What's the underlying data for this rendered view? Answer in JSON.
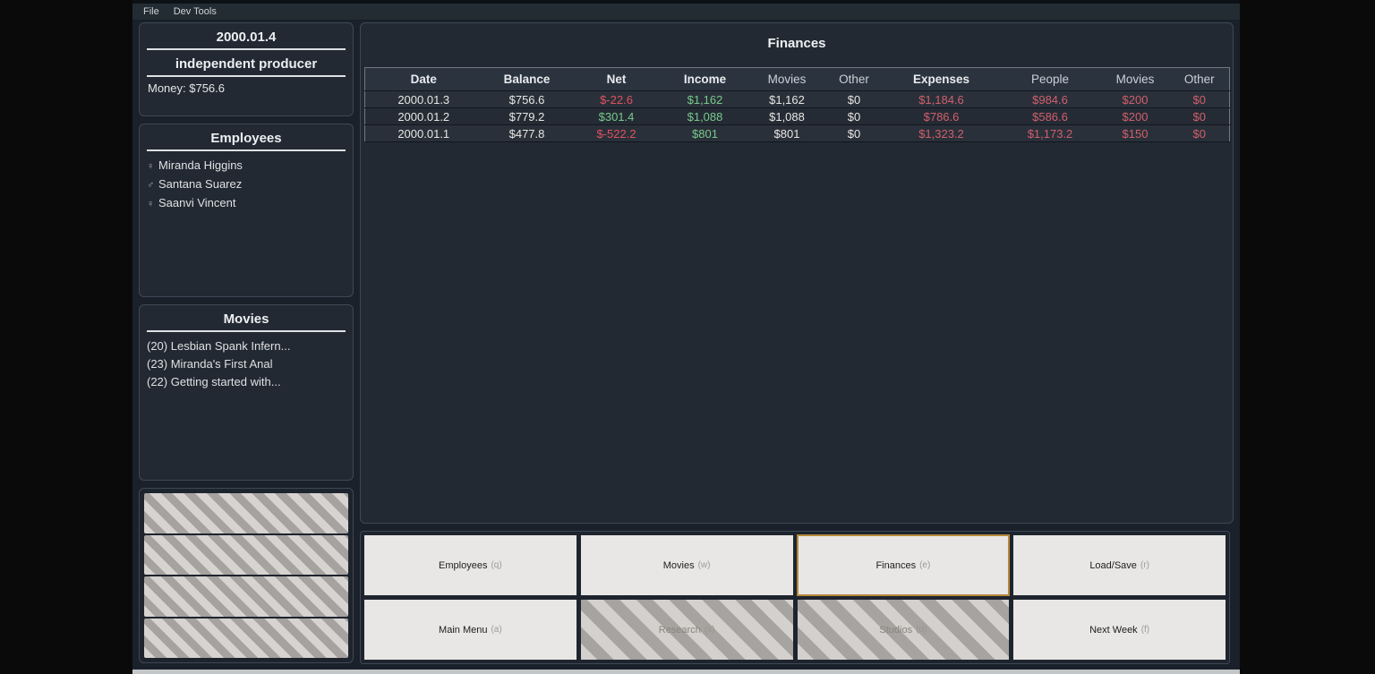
{
  "menu": {
    "items": [
      "File",
      "Dev Tools"
    ]
  },
  "status_panel": {
    "date": "2000.01.4",
    "producer_type": "independent producer",
    "money": "Money: $756.6"
  },
  "employees_panel": {
    "title": "Employees",
    "items": [
      {
        "gender": "female",
        "icon": "♀",
        "name": "Miranda Higgins"
      },
      {
        "gender": "male",
        "icon": "♂",
        "name": "Santana Suarez"
      },
      {
        "gender": "female",
        "icon": "♀",
        "name": "Saanvi Vincent"
      }
    ]
  },
  "movies_panel": {
    "title": "Movies",
    "items": [
      "(20) Lesbian Spank Infern...",
      "(23) Miranda's First Anal",
      "(22) Getting started with..."
    ]
  },
  "locked_panel": {
    "slots": 4
  },
  "finances_panel": {
    "title": "Finances",
    "columns": [
      {
        "label": "Date",
        "bold": true
      },
      {
        "label": "Balance",
        "bold": true
      },
      {
        "label": "Net",
        "bold": true
      },
      {
        "label": "Income",
        "bold": true
      },
      {
        "label": "Movies",
        "bold": false
      },
      {
        "label": "Other",
        "bold": false
      },
      {
        "label": "Expenses",
        "bold": true
      },
      {
        "label": "People",
        "bold": false
      },
      {
        "label": "Movies",
        "bold": false
      },
      {
        "label": "Other",
        "bold": false
      }
    ],
    "rows": [
      [
        {
          "t": "2000.01.3",
          "c": "plain"
        },
        {
          "t": "$756.6",
          "c": "plain"
        },
        {
          "t": "$-22.6",
          "c": "neg"
        },
        {
          "t": "$1,162",
          "c": "pos"
        },
        {
          "t": "$1,162",
          "c": "plain"
        },
        {
          "t": "$0",
          "c": "plain"
        },
        {
          "t": "$1,184.6",
          "c": "exp"
        },
        {
          "t": "$984.6",
          "c": "exp"
        },
        {
          "t": "$200",
          "c": "exp"
        },
        {
          "t": "$0",
          "c": "exp"
        }
      ],
      [
        {
          "t": "2000.01.2",
          "c": "plain"
        },
        {
          "t": "$779.2",
          "c": "plain"
        },
        {
          "t": "$301.4",
          "c": "pos"
        },
        {
          "t": "$1,088",
          "c": "pos"
        },
        {
          "t": "$1,088",
          "c": "plain"
        },
        {
          "t": "$0",
          "c": "plain"
        },
        {
          "t": "$786.6",
          "c": "exp"
        },
        {
          "t": "$586.6",
          "c": "exp"
        },
        {
          "t": "$200",
          "c": "exp"
        },
        {
          "t": "$0",
          "c": "exp"
        }
      ],
      [
        {
          "t": "2000.01.1",
          "c": "plain"
        },
        {
          "t": "$477.8",
          "c": "plain"
        },
        {
          "t": "$-522.2",
          "c": "neg"
        },
        {
          "t": "$801",
          "c": "pos"
        },
        {
          "t": "$801",
          "c": "plain"
        },
        {
          "t": "$0",
          "c": "plain"
        },
        {
          "t": "$1,323.2",
          "c": "exp"
        },
        {
          "t": "$1,173.2",
          "c": "exp"
        },
        {
          "t": "$150",
          "c": "exp"
        },
        {
          "t": "$0",
          "c": "exp"
        }
      ]
    ]
  },
  "nav": {
    "buttons": [
      {
        "label": "Employees",
        "key": "q",
        "state": "normal"
      },
      {
        "label": "Movies",
        "key": "w",
        "state": "normal"
      },
      {
        "label": "Finances",
        "key": "e",
        "state": "selected"
      },
      {
        "label": "Load/Save",
        "key": "r",
        "state": "normal"
      },
      {
        "label": "Main Menu",
        "key": "a",
        "state": "normal"
      },
      {
        "label": "Research",
        "key": "s",
        "state": "disabled"
      },
      {
        "label": "Studios",
        "key": "d",
        "state": "disabled"
      },
      {
        "label": "Next Week",
        "key": "f",
        "state": "normal"
      }
    ]
  },
  "colors": {
    "positive": "#79c98b",
    "negative": "#e0525f",
    "expense": "#d25f6d",
    "selected_border": "#b5893a"
  }
}
